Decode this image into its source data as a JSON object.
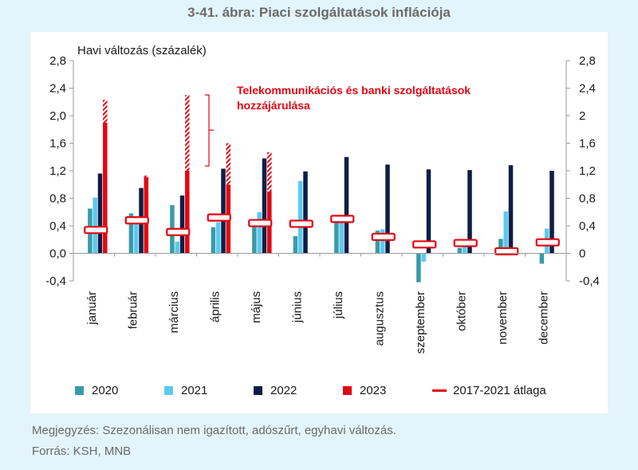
{
  "title": "3-41. ábra: Piaci szolgáltatások inflációja",
  "note": "Megjegyzés: Szezonálisan nem igazított, adószűrt, egyhavi változás.",
  "source": "Forrás: KSH, MNB",
  "chart_data": {
    "type": "bar",
    "ylabel": "Havi változás (százalék)",
    "ylim": [
      -0.4,
      2.8
    ],
    "yticks_left": [
      "2,8",
      "2,4",
      "2,0",
      "1,6",
      "1,2",
      "0,8",
      "0,4",
      "0,0",
      "-0,4"
    ],
    "yticks_right": [
      "2,8",
      "2,4",
      "2",
      "1,6",
      "1,2",
      "0,8",
      "0,4",
      "0",
      "-0,4"
    ],
    "ytick_values": [
      2.8,
      2.4,
      2.0,
      1.6,
      1.2,
      0.8,
      0.4,
      0.0,
      -0.4
    ],
    "categories": [
      "január",
      "február",
      "március",
      "április",
      "május",
      "június",
      "július",
      "augusztus",
      "szeptember",
      "október",
      "november",
      "december"
    ],
    "series": [
      {
        "name": "2020",
        "color": "#3a9aa8",
        "values": [
          0.65,
          0.58,
          0.7,
          0.38,
          0.43,
          0.25,
          0.53,
          0.33,
          -0.42,
          0.08,
          0.21,
          -0.15
        ]
      },
      {
        "name": "2021",
        "color": "#5bcaf0",
        "values": [
          0.81,
          0.5,
          0.17,
          0.45,
          0.6,
          1.05,
          0.52,
          0.35,
          -0.12,
          0.1,
          0.61,
          0.36
        ]
      },
      {
        "name": "2022",
        "color": "#0f1d45",
        "values": [
          1.16,
          0.95,
          0.84,
          1.23,
          1.38,
          1.19,
          1.4,
          1.29,
          1.22,
          1.21,
          1.28,
          1.2
        ]
      },
      {
        "name": "2023",
        "color": "#e30613",
        "values": [
          1.9,
          1.11,
          1.2,
          1.0,
          0.9,
          null,
          null,
          null,
          null,
          null,
          null,
          null
        ]
      }
    ],
    "contribution_2023": [
      0.33,
      0.02,
      1.1,
      0.6,
      0.57,
      null,
      null,
      null,
      null,
      null,
      null,
      null
    ],
    "average_2017_2021": {
      "name": "2017-2021 átlaga",
      "color": "#e30613",
      "values": [
        0.34,
        0.48,
        0.31,
        0.52,
        0.44,
        0.43,
        0.5,
        0.24,
        0.13,
        0.15,
        0.03,
        0.16
      ]
    },
    "annotation": [
      "Telekommunikációs és banki szolgáltatások",
      "hozzájárulása"
    ],
    "legend_position": "bottom"
  }
}
